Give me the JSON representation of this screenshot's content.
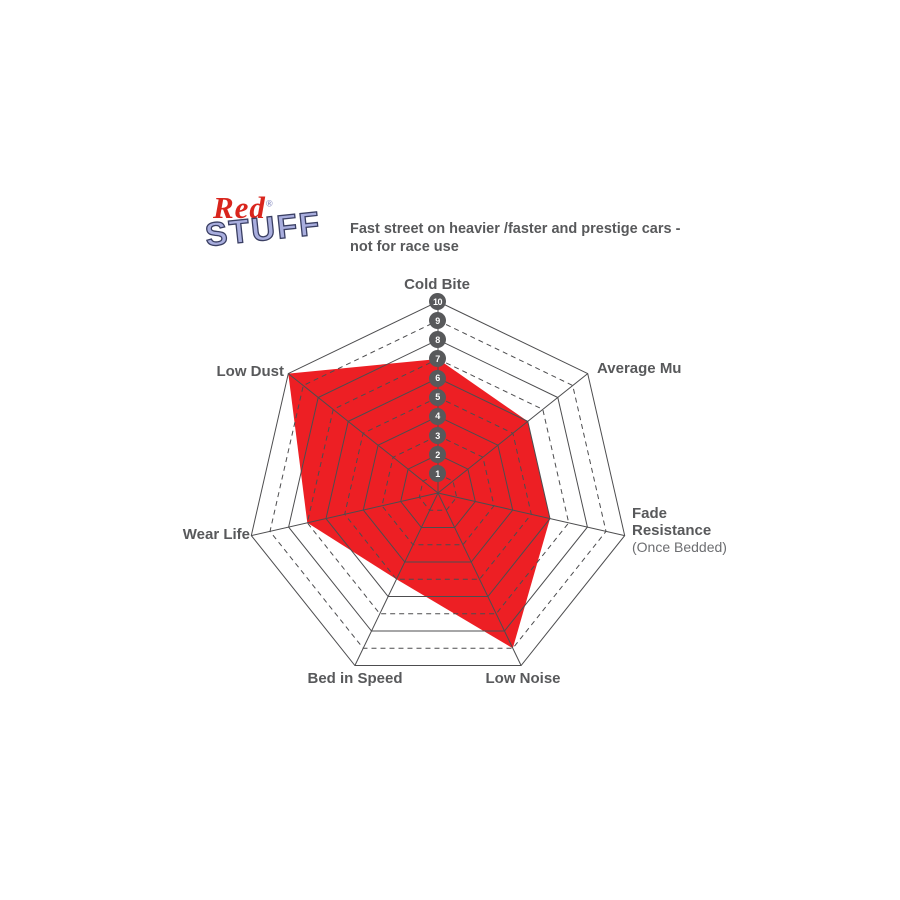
{
  "logo": {
    "line1": "Red",
    "registered": "®",
    "line2": "STUFF"
  },
  "headline": {
    "line1": "Fast street on heavier /faster and prestige cars -",
    "line2": "not for race use"
  },
  "chart_data": {
    "type": "radar",
    "title": "RedStuff brake pad performance ratings",
    "categories": [
      "Cold Bite",
      "Average Mu",
      "Fade Resistance",
      "Low Noise",
      "Bed in Speed",
      "Wear Life",
      "Low Dust"
    ],
    "sublabels": [
      "",
      "",
      "(Once Bedded)",
      "",
      "",
      "",
      ""
    ],
    "values": [
      7,
      6,
      6,
      9,
      5,
      7,
      10
    ],
    "scale": [
      10,
      9,
      8,
      7,
      6,
      5,
      4,
      3,
      2,
      1
    ],
    "axis_range": [
      0,
      10
    ],
    "rings": 10,
    "grid_style": "7-sided web: solid rings on even values, dashed rings on odd values, radial spokes to each corner",
    "legend": "none",
    "colors": {
      "series": "#ed1f24",
      "grid": "#4d4d4f",
      "label": "#58595b",
      "badge": "#58595b",
      "badge_text": "#ffffff"
    }
  }
}
